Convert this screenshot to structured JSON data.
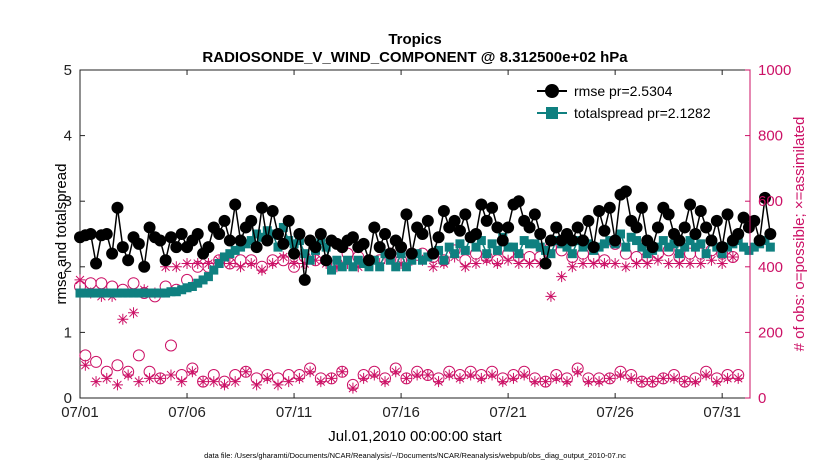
{
  "chart_data": {
    "type": "line",
    "title": "Tropics",
    "subtitle": "RADIOSONDE_V_WIND_COMPONENT @ 8.312500e+02 hPa",
    "xlabel": "Jul.01,2010 00:00:00 start",
    "ylabel": "rmse and totalspread",
    "y2label": "# of obs: o=possible; ×=assimilated",
    "footnote": "data file: /Users/gharamti/Documents/NCAR/Reanalysis/~/Documents/NCAR/Reanalysis/webpub/obs_diag_output_2010-07.nc",
    "xlim": [
      0,
      31.3
    ],
    "ylim": [
      0,
      5
    ],
    "y2lim": [
      0,
      1000
    ],
    "xticks": [
      0,
      5,
      10,
      15,
      20,
      25,
      30
    ],
    "xtick_labels": [
      "07/01",
      "07/06",
      "07/11",
      "07/16",
      "07/21",
      "07/26",
      "07/31"
    ],
    "yticks": [
      0,
      1,
      2,
      3,
      4,
      5
    ],
    "ytick_labels": [
      "0",
      "1",
      "2",
      "3",
      "4",
      "5"
    ],
    "y2ticks": [
      0,
      200,
      400,
      600,
      800,
      1000
    ],
    "y2tick_labels": [
      "0",
      "200",
      "400",
      "600",
      "800",
      "1000"
    ],
    "colors": {
      "rmse": "#000000",
      "spread": "#0f8080",
      "obs": "#cc1166"
    },
    "legend": {
      "position": "top-right",
      "entries": [
        "rmse pr=2.5304",
        "totalspread pr=2.1282"
      ]
    },
    "series": [
      {
        "name": "rmse pr=2.5304",
        "values": [
          2.45,
          2.48,
          2.5,
          2.05,
          2.48,
          2.5,
          2.2,
          2.9,
          2.3,
          2.1,
          2.45,
          2.35,
          2.0,
          2.6,
          2.45,
          2.4,
          2.1,
          2.45,
          2.3,
          2.5,
          2.3,
          2.4,
          2.5,
          2.2,
          2.3,
          2.6,
          2.5,
          2.7,
          2.4,
          2.95,
          2.4,
          2.6,
          2.7,
          2.3,
          2.9,
          2.4,
          2.85,
          2.5,
          2.35,
          2.7,
          2.2,
          2.5,
          1.8,
          2.4,
          2.3,
          2.5,
          2.1,
          2.4,
          2.35,
          2.3,
          2.4,
          2.45,
          2.3,
          2.35,
          2.1,
          2.6,
          2.3,
          2.5,
          2.2,
          2.4,
          2.3,
          2.8,
          2.2,
          2.6,
          2.5,
          2.7,
          2.2,
          2.45,
          2.85,
          2.6,
          2.7,
          2.55,
          2.8,
          2.45,
          2.5,
          2.95,
          2.7,
          2.9,
          2.6,
          2.4,
          2.6,
          2.95,
          3.0,
          2.7,
          2.6,
          2.8,
          2.5,
          2.05,
          2.4,
          2.6,
          2.4,
          2.5,
          2.4,
          2.6,
          2.4,
          2.7,
          2.3,
          2.85,
          2.55,
          2.9,
          2.4,
          3.1,
          3.15,
          2.7,
          2.6,
          2.9,
          2.4,
          2.3,
          2.6,
          2.9,
          2.8,
          2.5,
          2.4,
          2.6,
          2.95,
          2.5,
          2.85,
          2.6,
          2.4,
          2.7,
          2.3,
          2.8,
          2.4,
          2.5,
          2.75,
          2.6,
          2.7,
          2.4,
          3.05,
          2.5
        ]
      },
      {
        "name": "totalspread pr=2.1282",
        "values": [
          1.6,
          1.6,
          1.6,
          1.6,
          1.6,
          1.6,
          1.6,
          1.6,
          1.6,
          1.6,
          1.6,
          1.6,
          1.6,
          1.6,
          1.6,
          1.6,
          1.6,
          1.62,
          1.62,
          1.65,
          1.68,
          1.7,
          1.75,
          1.8,
          1.85,
          1.95,
          2.05,
          2.15,
          2.2,
          2.25,
          2.3,
          2.35,
          2.4,
          2.5,
          2.45,
          2.55,
          2.5,
          2.3,
          2.6,
          2.4,
          2.35,
          2.4,
          2.2,
          2.1,
          2.25,
          2.4,
          2.3,
          1.95,
          2.1,
          2.0,
          2.1,
          2.0,
          2.1,
          2.05,
          2.0,
          2.1,
          2.0,
          2.2,
          2.1,
          2.0,
          2.2,
          2.0,
          2.1,
          2.2,
          2.1,
          2.15,
          2.2,
          2.25,
          2.1,
          2.3,
          2.2,
          2.35,
          2.25,
          2.45,
          2.3,
          2.4,
          2.2,
          2.35,
          2.25,
          2.45,
          2.3,
          2.3,
          2.2,
          2.4,
          2.35,
          2.35,
          2.3,
          2.25,
          2.2,
          2.4,
          2.35,
          2.3,
          2.2,
          2.4,
          2.3,
          2.35,
          2.25,
          2.3,
          2.35,
          2.4,
          2.35,
          2.5,
          2.3,
          2.45,
          2.4,
          2.3,
          2.2,
          2.25,
          2.3,
          2.4,
          2.3,
          2.35,
          2.2,
          2.3,
          2.4,
          2.3,
          2.35,
          2.2,
          2.4,
          2.3,
          2.2,
          2.3,
          2.35,
          2.4,
          2.3,
          2.25,
          2.3,
          2.35,
          2.4,
          2.3
        ]
      }
    ],
    "obs_possible_day": [
      340,
      350,
      350,
      340,
      330,
      350,
      320,
      310,
      340,
      330,
      360,
      400,
      400,
      420,
      410,
      420,
      420,
      400,
      420,
      420,
      400,
      430,
      420,
      420,
      410,
      440,
      430,
      420,
      420,
      440,
      420,
      440,
      440,
      430,
      420,
      450,
      420,
      440,
      430,
      420,
      440,
      430,
      430,
      430,
      460,
      450,
      430,
      440,
      430,
      420,
      470,
      440,
      430,
      430,
      440,
      450,
      430,
      440,
      440,
      450,
      440,
      430
    ],
    "obs_possible_night": [
      130,
      110,
      80,
      100,
      80,
      130,
      80,
      60,
      160,
      70,
      90,
      50,
      70,
      50,
      70,
      80,
      60,
      70,
      60,
      70,
      70,
      90,
      60,
      60,
      80,
      40,
      70,
      80,
      60,
      90,
      60,
      80,
      70,
      60,
      80,
      70,
      80,
      70,
      80,
      60,
      70,
      80,
      60,
      50,
      70,
      60,
      90,
      60,
      60,
      60,
      80,
      70,
      50,
      50,
      60,
      70,
      50,
      60,
      80,
      60,
      70,
      70
    ],
    "obs_assim_day": [
      360,
      320,
      310,
      310,
      240,
      260,
      330,
      320,
      400,
      400,
      410,
      410,
      410,
      420,
      410,
      400,
      410,
      390,
      410,
      430,
      410,
      410,
      420,
      410,
      400,
      410,
      400,
      420,
      410,
      430,
      410,
      420,
      420,
      400,
      410,
      430,
      400,
      410,
      420,
      410,
      420,
      410,
      410,
      410,
      310,
      370,
      400,
      410,
      410,
      410,
      410,
      400,
      410,
      410,
      420,
      410,
      410,
      410,
      410,
      420,
      410,
      430
    ],
    "obs_assim_night": [
      100,
      50,
      60,
      40,
      70,
      50,
      60,
      60,
      70,
      50,
      80,
      50,
      50,
      40,
      50,
      80,
      40,
      60,
      40,
      50,
      60,
      80,
      50,
      60,
      80,
      30,
      60,
      70,
      50,
      80,
      60,
      70,
      70,
      50,
      70,
      60,
      70,
      60,
      70,
      50,
      60,
      70,
      50,
      50,
      60,
      50,
      80,
      50,
      50,
      60,
      70,
      60,
      50,
      50,
      60,
      60,
      50,
      50,
      70,
      50,
      60,
      60
    ]
  }
}
